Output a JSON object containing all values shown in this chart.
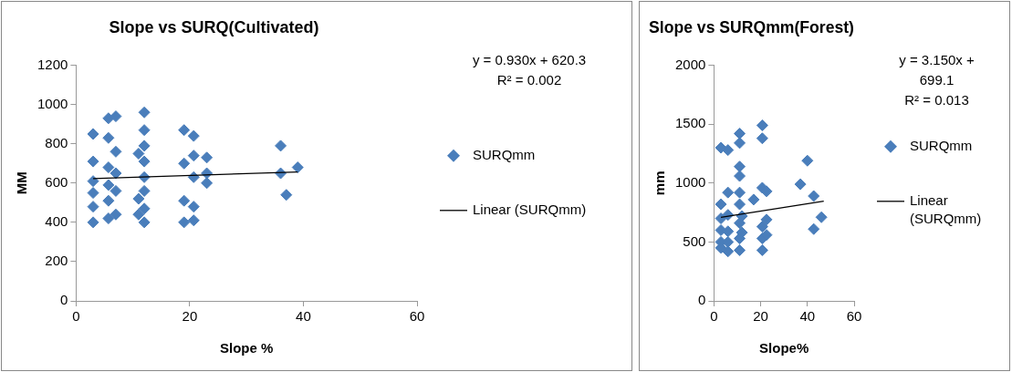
{
  "chart_data": [
    {
      "type": "scatter",
      "title": "Slope vs SURQ(Cultivated)",
      "xlabel": "Slope %",
      "ylabel": "MM",
      "xlim": [
        0,
        60
      ],
      "xticks": [
        0,
        20,
        40,
        60
      ],
      "ylim": [
        0,
        1200
      ],
      "yticks": [
        0,
        200,
        400,
        600,
        800,
        1000,
        1200
      ],
      "grid": false,
      "legend": "right",
      "marker": "diamond",
      "annotations": [
        "y = 0.930x + 620.3",
        "R² = 0.002"
      ],
      "series": [
        {
          "name": "SURQmm",
          "type": "scatter",
          "color": "#4a7ebb",
          "x": [
            3,
            3,
            3,
            3,
            3,
            3,
            5.7,
            5.7,
            5.7,
            5.7,
            5.7,
            5.7,
            7,
            7,
            7,
            7,
            7,
            12,
            12,
            12,
            12,
            12,
            12,
            12,
            12,
            11,
            11,
            11,
            19,
            19,
            19,
            19,
            20.7,
            20.7,
            20.7,
            20.7,
            20.7,
            23,
            23,
            23,
            36,
            36,
            37,
            39
          ],
          "values": [
            400,
            480,
            550,
            610,
            710,
            850,
            930,
            830,
            680,
            590,
            510,
            420,
            940,
            760,
            650,
            560,
            440,
            960,
            870,
            790,
            710,
            630,
            560,
            470,
            400,
            750,
            520,
            440,
            870,
            700,
            510,
            400,
            840,
            740,
            630,
            480,
            410,
            730,
            650,
            600,
            790,
            650,
            540,
            680
          ]
        },
        {
          "name": "Linear (SURQmm)",
          "type": "line",
          "color": "#000000",
          "marker": "none",
          "line_style": "solid",
          "x": [
            3,
            39
          ],
          "values": [
            623,
            657
          ]
        }
      ]
    },
    {
      "type": "scatter",
      "title": "Slope vs SURQmm(Forest)",
      "xlabel": "Slope%",
      "ylabel": "mm",
      "xlim": [
        0,
        60
      ],
      "xticks": [
        0,
        20,
        40,
        60
      ],
      "ylim": [
        0,
        2000
      ],
      "yticks": [
        0,
        500,
        1000,
        1500,
        2000
      ],
      "grid": false,
      "legend": "right",
      "marker": "diamond",
      "annotations": [
        "y = 3.150x + 699.1",
        "R² = 0.013"
      ],
      "series": [
        {
          "name": "SURQmm",
          "type": "scatter",
          "color": "#4a7ebb",
          "x": [
            3,
            3,
            3,
            3,
            3,
            3,
            6,
            6,
            6,
            6,
            6,
            6,
            11,
            11,
            11,
            11,
            11,
            11,
            11,
            11,
            11,
            12,
            12,
            17,
            20.7,
            20.7,
            20.7,
            20.7,
            20.7,
            20.7,
            22.5,
            22.5,
            22.5,
            37,
            40,
            42.7,
            42.7,
            46
          ],
          "values": [
            1300,
            820,
            700,
            600,
            500,
            450,
            1280,
            920,
            730,
            590,
            500,
            420,
            1420,
            1340,
            1140,
            1060,
            920,
            820,
            660,
            530,
            430,
            720,
            580,
            860,
            1490,
            1380,
            960,
            630,
            530,
            430,
            930,
            690,
            560,
            990,
            1190,
            890,
            610,
            710
          ]
        },
        {
          "name": "Linear (SURQmm)",
          "type": "line",
          "color": "#000000",
          "marker": "none",
          "line_style": "solid",
          "x": [
            3,
            47
          ],
          "values": [
            709,
            847
          ]
        }
      ]
    }
  ]
}
